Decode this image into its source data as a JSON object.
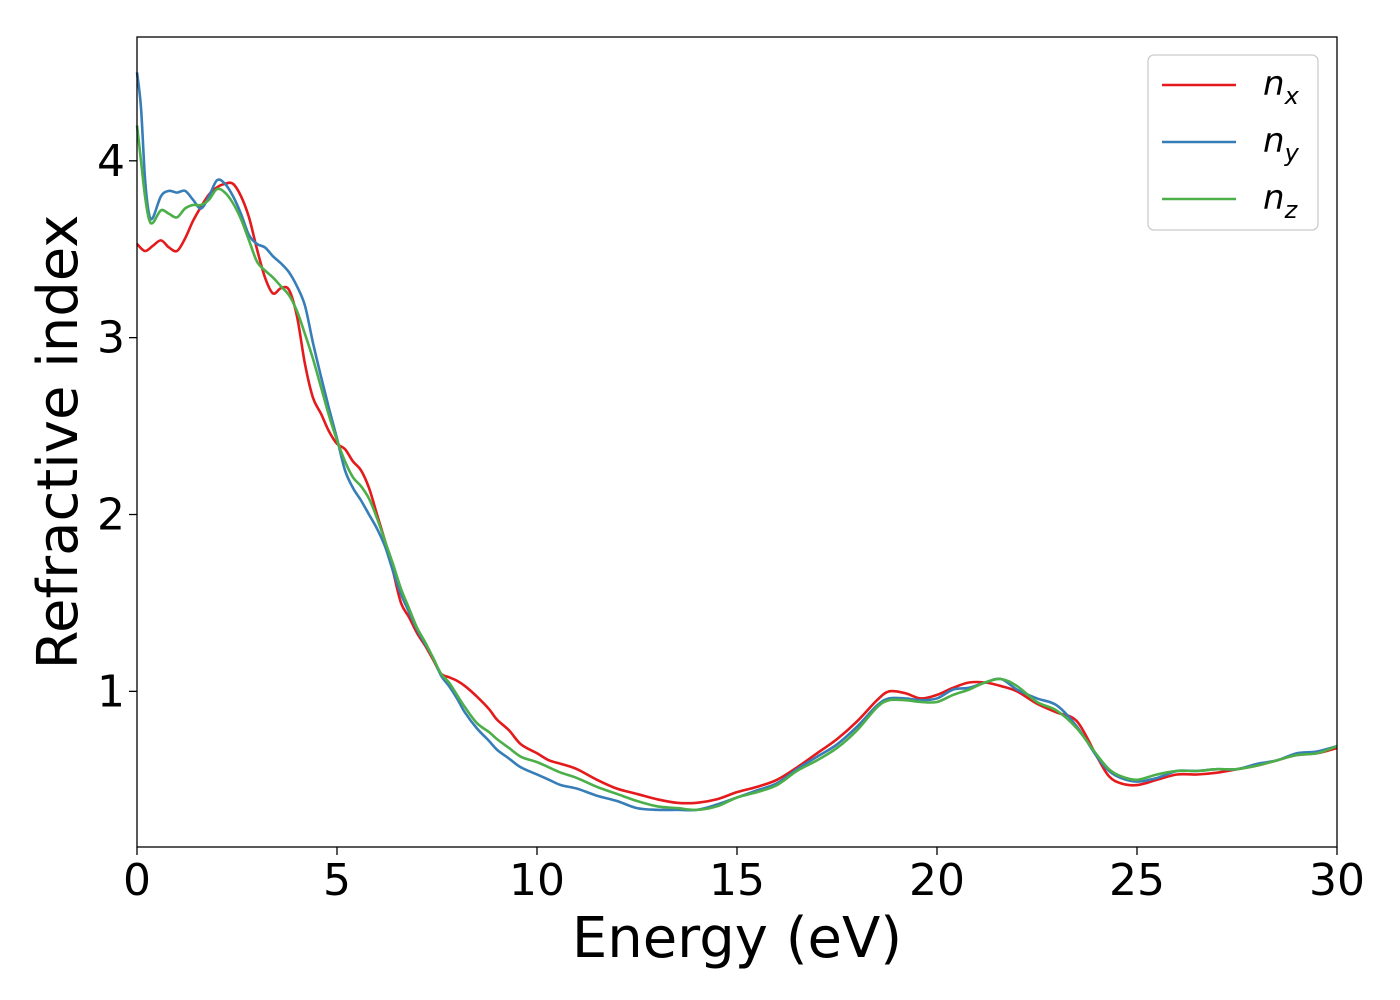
{
  "chart_data": {
    "type": "line",
    "title": "",
    "xlabel": "Energy (eV)",
    "ylabel": "Refractive index",
    "xlim": [
      0,
      30
    ],
    "ylim": [
      0.12,
      4.7
    ],
    "xticks": [
      0,
      5,
      10,
      15,
      20,
      25,
      30
    ],
    "yticks": [
      1,
      2,
      3,
      4
    ],
    "grid": false,
    "legend_position": "top-right",
    "series": [
      {
        "name": "n",
        "subscript": "x",
        "color": "#e41a1c",
        "points": [
          [
            0,
            3.53
          ],
          [
            0.2,
            3.49
          ],
          [
            0.4,
            3.52
          ],
          [
            0.6,
            3.55
          ],
          [
            0.8,
            3.51
          ],
          [
            1.0,
            3.49
          ],
          [
            1.2,
            3.56
          ],
          [
            1.4,
            3.66
          ],
          [
            1.6,
            3.74
          ],
          [
            1.8,
            3.81
          ],
          [
            2.0,
            3.85
          ],
          [
            2.2,
            3.87
          ],
          [
            2.4,
            3.87
          ],
          [
            2.6,
            3.8
          ],
          [
            2.8,
            3.68
          ],
          [
            3.0,
            3.5
          ],
          [
            3.2,
            3.34
          ],
          [
            3.4,
            3.25
          ],
          [
            3.6,
            3.28
          ],
          [
            3.8,
            3.27
          ],
          [
            4.0,
            3.12
          ],
          [
            4.2,
            2.85
          ],
          [
            4.4,
            2.66
          ],
          [
            4.6,
            2.57
          ],
          [
            4.8,
            2.47
          ],
          [
            5.0,
            2.4
          ],
          [
            5.2,
            2.37
          ],
          [
            5.4,
            2.3
          ],
          [
            5.6,
            2.25
          ],
          [
            5.8,
            2.15
          ],
          [
            6.0,
            2.0
          ],
          [
            6.2,
            1.85
          ],
          [
            6.4,
            1.68
          ],
          [
            6.6,
            1.5
          ],
          [
            6.8,
            1.42
          ],
          [
            7.0,
            1.33
          ],
          [
            7.2,
            1.26
          ],
          [
            7.4,
            1.18
          ],
          [
            7.6,
            1.1
          ],
          [
            7.8,
            1.08
          ],
          [
            8.0,
            1.06
          ],
          [
            8.2,
            1.03
          ],
          [
            8.5,
            0.97
          ],
          [
            8.8,
            0.9
          ],
          [
            9.0,
            0.84
          ],
          [
            9.3,
            0.78
          ],
          [
            9.6,
            0.7
          ],
          [
            10.0,
            0.65
          ],
          [
            10.3,
            0.61
          ],
          [
            10.6,
            0.59
          ],
          [
            11.0,
            0.56
          ],
          [
            11.5,
            0.5
          ],
          [
            12.0,
            0.45
          ],
          [
            12.5,
            0.42
          ],
          [
            13.0,
            0.39
          ],
          [
            13.5,
            0.37
          ],
          [
            14.0,
            0.37
          ],
          [
            14.5,
            0.39
          ],
          [
            15.0,
            0.43
          ],
          [
            15.5,
            0.46
          ],
          [
            16.0,
            0.5
          ],
          [
            16.5,
            0.57
          ],
          [
            17.0,
            0.65
          ],
          [
            17.5,
            0.73
          ],
          [
            18.0,
            0.83
          ],
          [
            18.5,
            0.95
          ],
          [
            18.8,
            1.0
          ],
          [
            19.2,
            0.99
          ],
          [
            19.6,
            0.96
          ],
          [
            20.0,
            0.98
          ],
          [
            20.4,
            1.02
          ],
          [
            20.8,
            1.05
          ],
          [
            21.2,
            1.05
          ],
          [
            21.6,
            1.03
          ],
          [
            22.0,
            1.0
          ],
          [
            22.5,
            0.93
          ],
          [
            23.0,
            0.88
          ],
          [
            23.5,
            0.83
          ],
          [
            24.0,
            0.63
          ],
          [
            24.3,
            0.52
          ],
          [
            24.6,
            0.48
          ],
          [
            25.0,
            0.47
          ],
          [
            25.5,
            0.5
          ],
          [
            26.0,
            0.53
          ],
          [
            26.5,
            0.53
          ],
          [
            27.0,
            0.54
          ],
          [
            27.5,
            0.56
          ],
          [
            28.0,
            0.58
          ],
          [
            28.5,
            0.61
          ],
          [
            29.0,
            0.64
          ],
          [
            29.5,
            0.65
          ],
          [
            30.0,
            0.68
          ]
        ]
      },
      {
        "name": "n",
        "subscript": "y",
        "color": "#377eb8",
        "points": [
          [
            0,
            4.5
          ],
          [
            0.1,
            4.3
          ],
          [
            0.2,
            3.9
          ],
          [
            0.3,
            3.7
          ],
          [
            0.4,
            3.68
          ],
          [
            0.6,
            3.8
          ],
          [
            0.8,
            3.83
          ],
          [
            1.0,
            3.82
          ],
          [
            1.2,
            3.83
          ],
          [
            1.4,
            3.78
          ],
          [
            1.6,
            3.73
          ],
          [
            1.8,
            3.8
          ],
          [
            2.0,
            3.89
          ],
          [
            2.2,
            3.87
          ],
          [
            2.4,
            3.8
          ],
          [
            2.6,
            3.7
          ],
          [
            2.8,
            3.58
          ],
          [
            3.0,
            3.53
          ],
          [
            3.2,
            3.51
          ],
          [
            3.4,
            3.46
          ],
          [
            3.6,
            3.42
          ],
          [
            3.8,
            3.37
          ],
          [
            4.0,
            3.29
          ],
          [
            4.2,
            3.18
          ],
          [
            4.4,
            2.97
          ],
          [
            4.6,
            2.78
          ],
          [
            4.8,
            2.6
          ],
          [
            5.0,
            2.43
          ],
          [
            5.2,
            2.25
          ],
          [
            5.4,
            2.15
          ],
          [
            5.6,
            2.08
          ],
          [
            5.8,
            2.0
          ],
          [
            6.0,
            1.92
          ],
          [
            6.2,
            1.82
          ],
          [
            6.4,
            1.68
          ],
          [
            6.6,
            1.55
          ],
          [
            6.8,
            1.45
          ],
          [
            7.0,
            1.35
          ],
          [
            7.2,
            1.27
          ],
          [
            7.4,
            1.19
          ],
          [
            7.6,
            1.09
          ],
          [
            7.8,
            1.03
          ],
          [
            8.0,
            0.96
          ],
          [
            8.2,
            0.88
          ],
          [
            8.5,
            0.79
          ],
          [
            8.8,
            0.72
          ],
          [
            9.0,
            0.67
          ],
          [
            9.3,
            0.62
          ],
          [
            9.6,
            0.57
          ],
          [
            10.0,
            0.53
          ],
          [
            10.3,
            0.5
          ],
          [
            10.6,
            0.47
          ],
          [
            11.0,
            0.45
          ],
          [
            11.5,
            0.41
          ],
          [
            12.0,
            0.38
          ],
          [
            12.5,
            0.34
          ],
          [
            13.0,
            0.33
          ],
          [
            13.5,
            0.33
          ],
          [
            14.0,
            0.33
          ],
          [
            14.5,
            0.36
          ],
          [
            15.0,
            0.4
          ],
          [
            15.5,
            0.44
          ],
          [
            16.0,
            0.48
          ],
          [
            16.5,
            0.56
          ],
          [
            17.0,
            0.63
          ],
          [
            17.5,
            0.7
          ],
          [
            18.0,
            0.8
          ],
          [
            18.5,
            0.92
          ],
          [
            18.8,
            0.96
          ],
          [
            19.2,
            0.96
          ],
          [
            19.6,
            0.95
          ],
          [
            20.0,
            0.96
          ],
          [
            20.4,
            1.01
          ],
          [
            20.8,
            1.02
          ],
          [
            21.2,
            1.05
          ],
          [
            21.6,
            1.07
          ],
          [
            22.0,
            1.01
          ],
          [
            22.5,
            0.96
          ],
          [
            23.0,
            0.92
          ],
          [
            23.5,
            0.8
          ],
          [
            24.0,
            0.63
          ],
          [
            24.3,
            0.55
          ],
          [
            24.6,
            0.51
          ],
          [
            25.0,
            0.49
          ],
          [
            25.5,
            0.51
          ],
          [
            26.0,
            0.55
          ],
          [
            26.5,
            0.55
          ],
          [
            27.0,
            0.56
          ],
          [
            27.5,
            0.56
          ],
          [
            28.0,
            0.59
          ],
          [
            28.5,
            0.61
          ],
          [
            29.0,
            0.65
          ],
          [
            29.5,
            0.66
          ],
          [
            30.0,
            0.69
          ]
        ]
      },
      {
        "name": "n",
        "subscript": "z",
        "color": "#4daf4a",
        "points": [
          [
            0,
            4.2
          ],
          [
            0.1,
            4.0
          ],
          [
            0.2,
            3.8
          ],
          [
            0.3,
            3.67
          ],
          [
            0.4,
            3.65
          ],
          [
            0.6,
            3.72
          ],
          [
            0.8,
            3.7
          ],
          [
            1.0,
            3.68
          ],
          [
            1.2,
            3.73
          ],
          [
            1.4,
            3.75
          ],
          [
            1.6,
            3.75
          ],
          [
            1.8,
            3.78
          ],
          [
            2.0,
            3.84
          ],
          [
            2.2,
            3.82
          ],
          [
            2.4,
            3.76
          ],
          [
            2.6,
            3.67
          ],
          [
            2.8,
            3.55
          ],
          [
            3.0,
            3.43
          ],
          [
            3.2,
            3.38
          ],
          [
            3.4,
            3.34
          ],
          [
            3.6,
            3.29
          ],
          [
            3.8,
            3.24
          ],
          [
            4.0,
            3.15
          ],
          [
            4.2,
            3.02
          ],
          [
            4.4,
            2.88
          ],
          [
            4.6,
            2.72
          ],
          [
            4.8,
            2.56
          ],
          [
            5.0,
            2.42
          ],
          [
            5.2,
            2.3
          ],
          [
            5.4,
            2.21
          ],
          [
            5.6,
            2.16
          ],
          [
            5.8,
            2.09
          ],
          [
            6.0,
            1.98
          ],
          [
            6.2,
            1.85
          ],
          [
            6.4,
            1.72
          ],
          [
            6.6,
            1.58
          ],
          [
            6.8,
            1.47
          ],
          [
            7.0,
            1.36
          ],
          [
            7.2,
            1.28
          ],
          [
            7.4,
            1.19
          ],
          [
            7.6,
            1.1
          ],
          [
            7.8,
            1.05
          ],
          [
            8.0,
            0.98
          ],
          [
            8.2,
            0.91
          ],
          [
            8.5,
            0.82
          ],
          [
            8.8,
            0.77
          ],
          [
            9.0,
            0.73
          ],
          [
            9.3,
            0.68
          ],
          [
            9.6,
            0.63
          ],
          [
            10.0,
            0.6
          ],
          [
            10.3,
            0.57
          ],
          [
            10.6,
            0.54
          ],
          [
            11.0,
            0.51
          ],
          [
            11.5,
            0.46
          ],
          [
            12.0,
            0.42
          ],
          [
            12.5,
            0.38
          ],
          [
            13.0,
            0.35
          ],
          [
            13.5,
            0.34
          ],
          [
            14.0,
            0.33
          ],
          [
            14.5,
            0.35
          ],
          [
            15.0,
            0.4
          ],
          [
            15.5,
            0.43
          ],
          [
            16.0,
            0.47
          ],
          [
            16.5,
            0.55
          ],
          [
            17.0,
            0.61
          ],
          [
            17.5,
            0.68
          ],
          [
            18.0,
            0.78
          ],
          [
            18.5,
            0.91
          ],
          [
            18.8,
            0.95
          ],
          [
            19.2,
            0.95
          ],
          [
            19.6,
            0.94
          ],
          [
            20.0,
            0.94
          ],
          [
            20.4,
            0.98
          ],
          [
            20.8,
            1.01
          ],
          [
            21.2,
            1.05
          ],
          [
            21.6,
            1.07
          ],
          [
            22.0,
            1.03
          ],
          [
            22.5,
            0.94
          ],
          [
            23.0,
            0.89
          ],
          [
            23.5,
            0.79
          ],
          [
            24.0,
            0.64
          ],
          [
            24.3,
            0.56
          ],
          [
            24.6,
            0.52
          ],
          [
            25.0,
            0.5
          ],
          [
            25.5,
            0.53
          ],
          [
            26.0,
            0.55
          ],
          [
            26.5,
            0.55
          ],
          [
            27.0,
            0.56
          ],
          [
            27.5,
            0.56
          ],
          [
            28.0,
            0.58
          ],
          [
            28.5,
            0.61
          ],
          [
            29.0,
            0.64
          ],
          [
            29.5,
            0.65
          ],
          [
            30.0,
            0.69
          ]
        ]
      }
    ]
  }
}
